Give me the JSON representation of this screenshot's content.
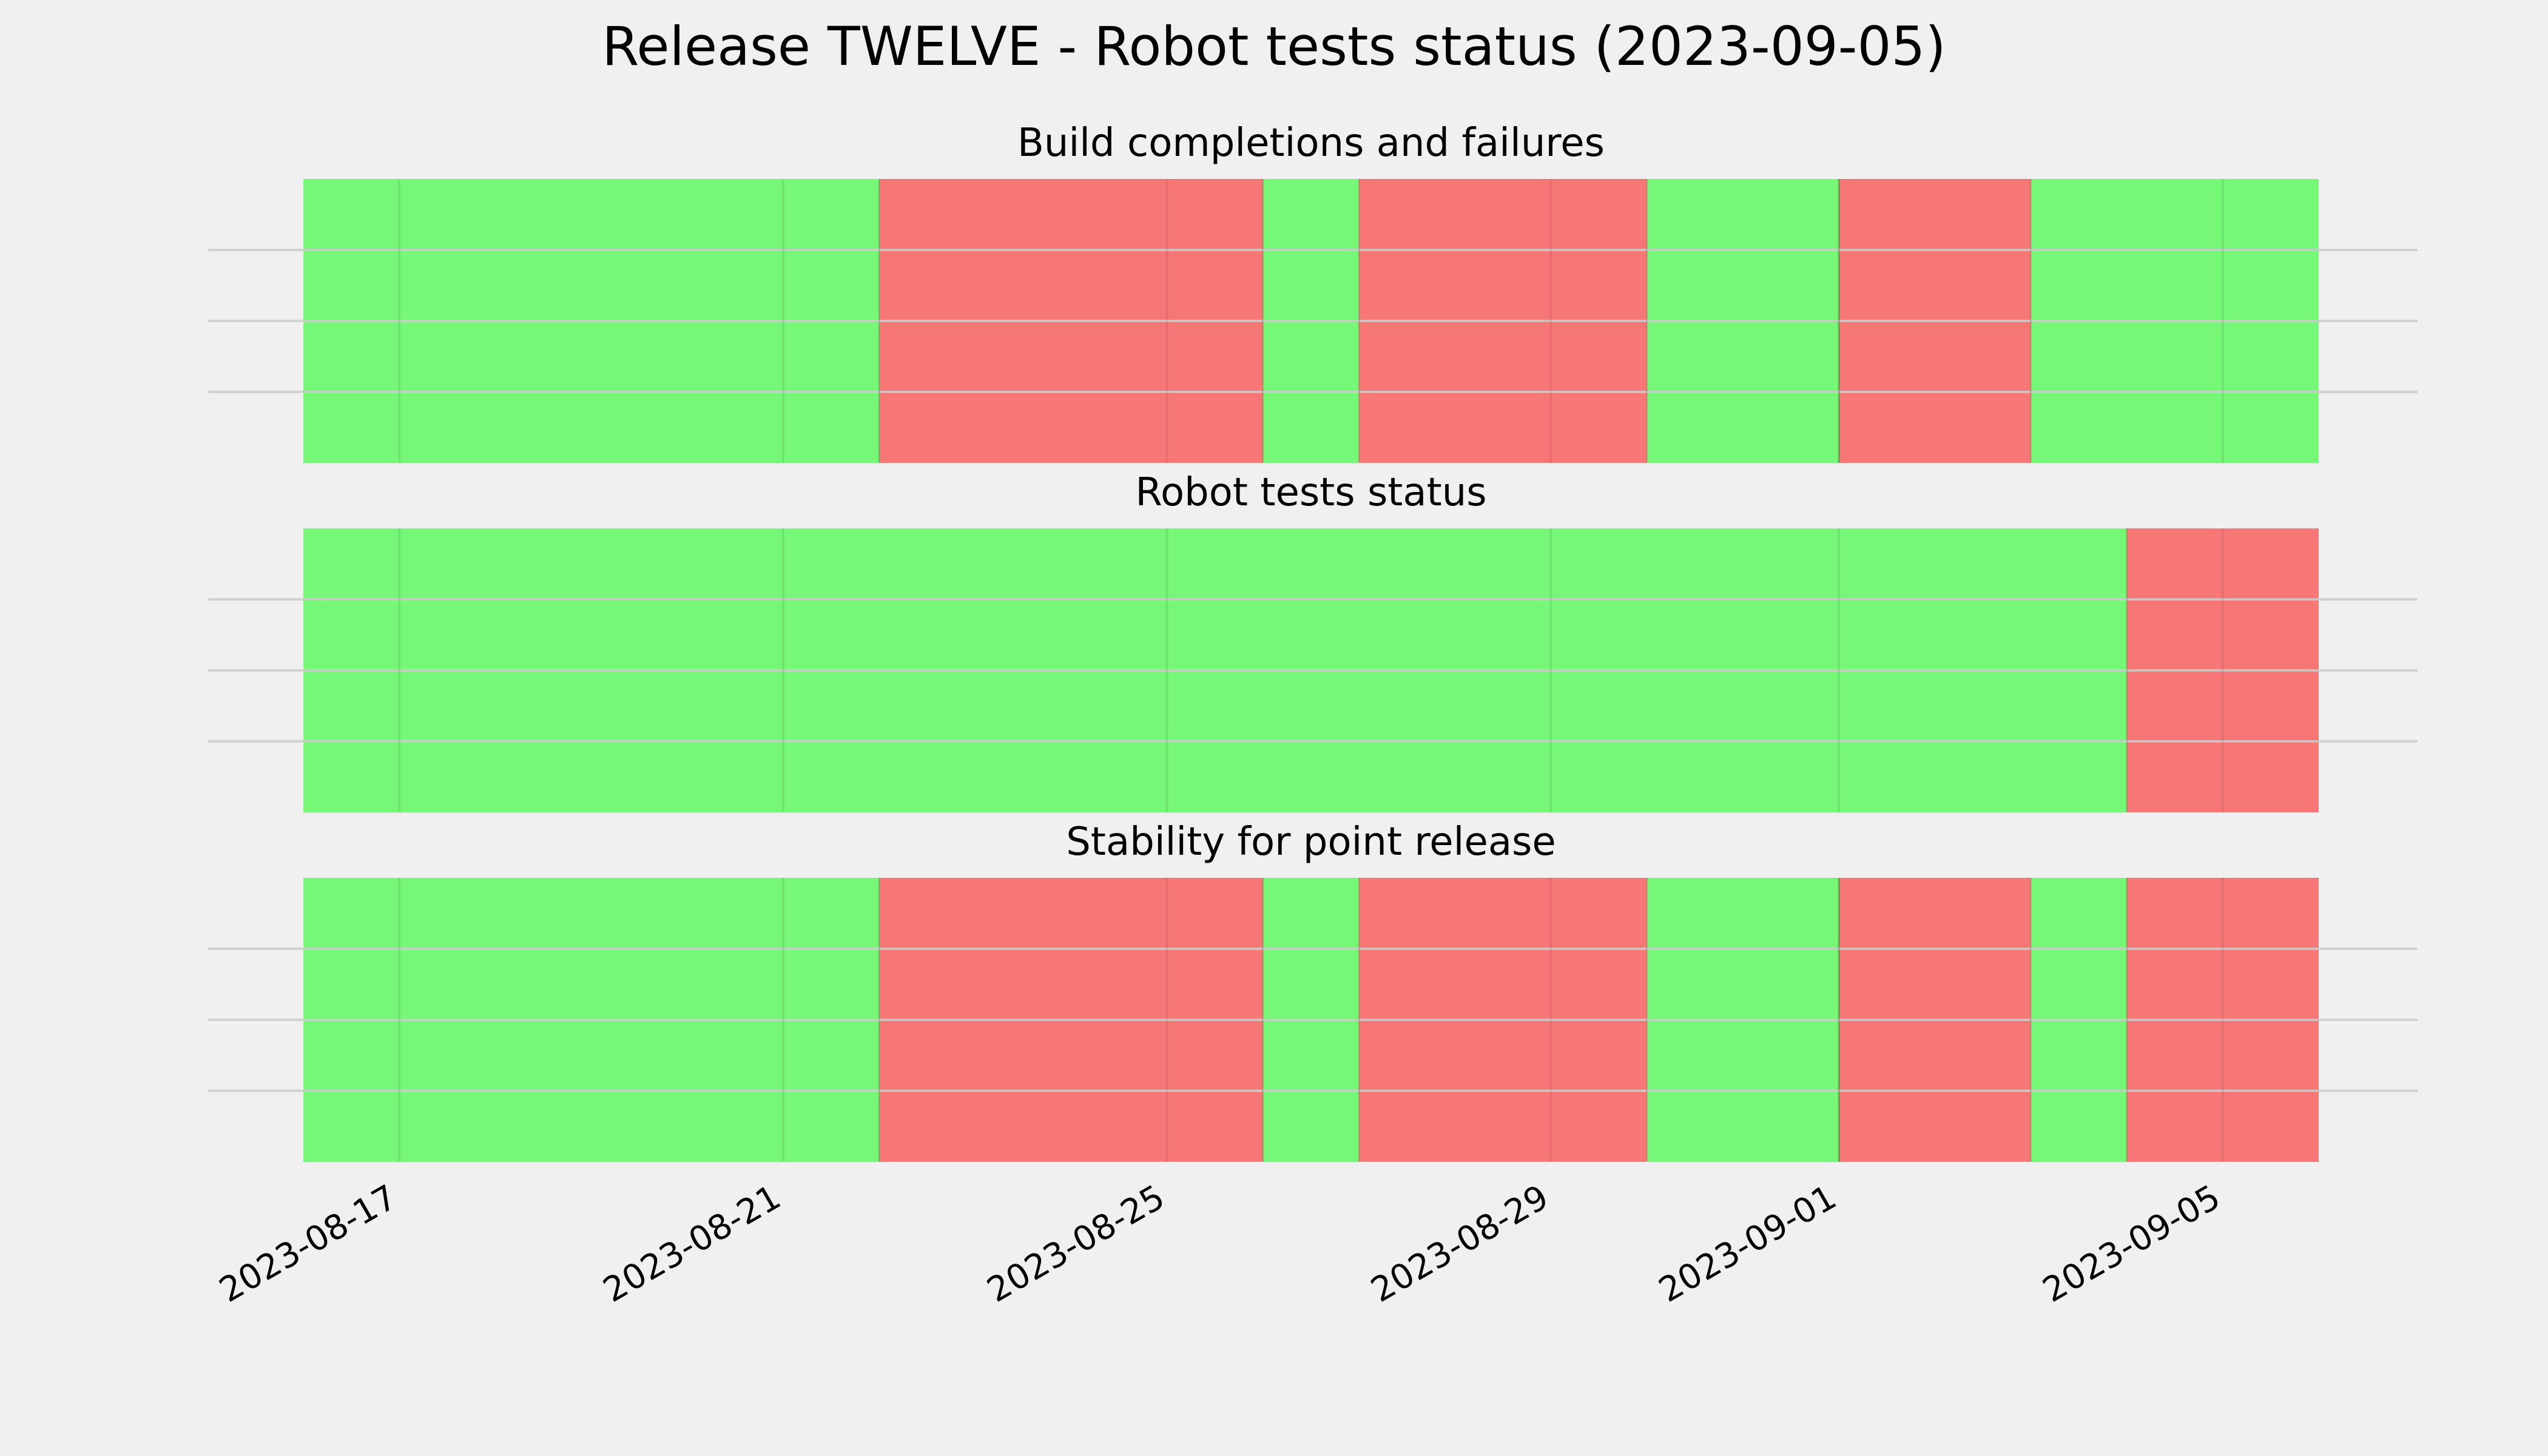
{
  "chart_data": {
    "type": "timeline",
    "title": "Release TWELVE - Robot tests status (2023-09-05)",
    "x_range": [
      "2023-08-16",
      "2023-09-06"
    ],
    "x_ticks": [
      "2023-08-17",
      "2023-08-21",
      "2023-08-25",
      "2023-08-29",
      "2023-09-01",
      "2023-09-05"
    ],
    "grid": true,
    "colors": {
      "pass": "#77f777",
      "fail": "#f77777",
      "background": "#f0f0f0",
      "grid": "#cbcbcb"
    },
    "panels": [
      {
        "title": "Build completions and failures",
        "segments": [
          {
            "start": "2023-08-16",
            "end": "2023-08-22",
            "status": "pass"
          },
          {
            "start": "2023-08-22",
            "end": "2023-08-26",
            "status": "fail"
          },
          {
            "start": "2023-08-26",
            "end": "2023-08-27",
            "status": "pass"
          },
          {
            "start": "2023-08-27",
            "end": "2023-08-30",
            "status": "fail"
          },
          {
            "start": "2023-08-30",
            "end": "2023-09-01",
            "status": "pass"
          },
          {
            "start": "2023-09-01",
            "end": "2023-09-03",
            "status": "fail"
          },
          {
            "start": "2023-09-03",
            "end": "2023-09-06",
            "status": "pass"
          }
        ]
      },
      {
        "title": "Robot tests status",
        "segments": [
          {
            "start": "2023-08-16",
            "end": "2023-09-04",
            "status": "pass"
          },
          {
            "start": "2023-09-04",
            "end": "2023-09-06",
            "status": "fail"
          }
        ]
      },
      {
        "title": "Stability for point release",
        "segments": [
          {
            "start": "2023-08-16",
            "end": "2023-08-22",
            "status": "pass"
          },
          {
            "start": "2023-08-22",
            "end": "2023-08-26",
            "status": "fail"
          },
          {
            "start": "2023-08-26",
            "end": "2023-08-27",
            "status": "pass"
          },
          {
            "start": "2023-08-27",
            "end": "2023-08-30",
            "status": "fail"
          },
          {
            "start": "2023-08-30",
            "end": "2023-09-01",
            "status": "pass"
          },
          {
            "start": "2023-09-01",
            "end": "2023-09-03",
            "status": "fail"
          },
          {
            "start": "2023-09-03",
            "end": "2023-09-04",
            "status": "pass"
          },
          {
            "start": "2023-09-04",
            "end": "2023-09-06",
            "status": "fail"
          }
        ]
      }
    ]
  }
}
